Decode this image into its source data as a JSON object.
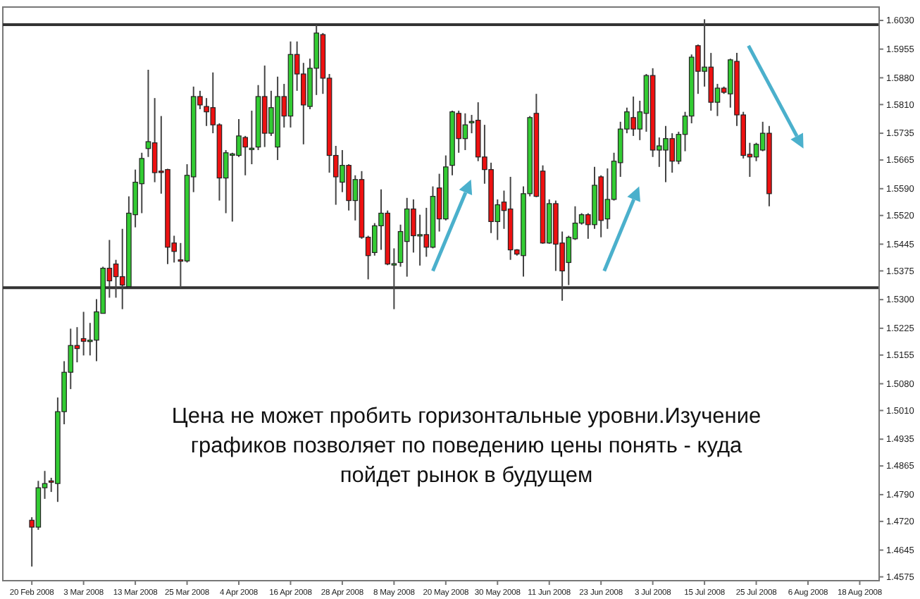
{
  "chart_data": {
    "type": "candlestick",
    "categories": [
      "20 Feb 2008",
      null,
      null,
      null,
      null,
      null,
      null,
      null,
      "3 Mar 2008",
      null,
      null,
      null,
      null,
      null,
      null,
      null,
      "13 Mar 2008",
      null,
      null,
      null,
      null,
      null,
      null,
      null,
      "25 Mar 2008",
      null,
      null,
      null,
      null,
      null,
      null,
      null,
      "4 Apr 2008",
      null,
      null,
      null,
      null,
      null,
      null,
      null,
      "16 Apr 2008",
      null,
      null,
      null,
      null,
      null,
      null,
      null,
      "28 Apr 2008",
      null,
      null,
      null,
      null,
      null,
      null,
      null,
      "8 May 2008",
      null,
      null,
      null,
      null,
      null,
      null,
      null,
      "20 May 2008",
      null,
      null,
      null,
      null,
      null,
      null,
      null,
      "30 May 2008",
      null,
      null,
      null,
      null,
      null,
      null,
      null,
      "11 Jun 2008",
      null,
      null,
      null,
      null,
      null,
      null,
      null,
      "23 Jun 2008",
      null,
      null,
      null,
      null,
      null,
      null,
      null,
      "3 Jul 2008",
      null,
      null,
      null,
      null,
      null,
      null,
      null,
      "15 Jul 2008",
      null,
      null,
      null,
      null,
      null,
      null,
      null,
      "25 Jul 2008",
      null,
      null,
      null,
      null,
      null,
      null,
      null,
      "6 Aug 2008",
      null,
      null,
      null,
      null,
      null,
      null,
      null,
      "18 Aug 2008",
      null,
      null
    ],
    "ohlc": [
      [
        1.4723,
        1.4731,
        1.4602,
        1.4705
      ],
      [
        1.4705,
        1.4826,
        1.4698,
        1.4808
      ],
      [
        1.4808,
        1.4852,
        1.4779,
        1.4819
      ],
      [
        1.4826,
        1.4834,
        1.4797,
        1.4823
      ],
      [
        1.4819,
        1.5044,
        1.4771,
        1.5007
      ],
      [
        1.5007,
        1.5139,
        1.4974,
        1.511
      ],
      [
        1.511,
        1.5224,
        1.5066,
        1.518
      ],
      [
        1.518,
        1.5228,
        1.5136,
        1.5172
      ],
      [
        1.5198,
        1.5268,
        1.5154,
        1.5191
      ],
      [
        1.5193,
        1.5239,
        1.5154,
        1.5194
      ],
      [
        1.5194,
        1.5301,
        1.5139,
        1.5268
      ],
      [
        1.5264,
        1.5386,
        1.5264,
        1.5382
      ],
      [
        1.5382,
        1.5456,
        1.5305,
        1.5349
      ],
      [
        1.5393,
        1.5404,
        1.5305,
        1.536
      ],
      [
        1.536,
        1.5485,
        1.5275,
        1.5338
      ],
      [
        1.5334,
        1.557,
        1.5331,
        1.5526
      ],
      [
        1.5522,
        1.564,
        1.5489,
        1.5607
      ],
      [
        1.5603,
        1.5684,
        1.5526,
        1.5669
      ],
      [
        1.5695,
        1.5901,
        1.5673,
        1.5713
      ],
      [
        1.571,
        1.5827,
        1.5607,
        1.5632
      ],
      [
        1.5636,
        1.578,
        1.5577,
        1.5634
      ],
      [
        1.564,
        1.5642,
        1.5393,
        1.5437
      ],
      [
        1.5448,
        1.5467,
        1.5397,
        1.5426
      ],
      [
        1.5404,
        1.5448,
        1.5331,
        1.5402
      ],
      [
        1.5401,
        1.5654,
        1.5397,
        1.5625
      ],
      [
        1.5621,
        1.5857,
        1.5581,
        1.5831
      ],
      [
        1.5831,
        1.5846,
        1.5798,
        1.5809
      ],
      [
        1.5805,
        1.5827,
        1.5754,
        1.5791
      ],
      [
        1.5802,
        1.5894,
        1.5735,
        1.5757
      ],
      [
        1.5757,
        1.5761,
        1.5559,
        1.5618
      ],
      [
        1.5618,
        1.5691,
        1.5526,
        1.5684
      ],
      [
        1.568,
        1.5684,
        1.5504,
        1.5681
      ],
      [
        1.5677,
        1.5772,
        1.5673,
        1.5728
      ],
      [
        1.5724,
        1.5728,
        1.5625,
        1.5699
      ],
      [
        1.5695,
        1.5794,
        1.5654,
        1.5696
      ],
      [
        1.5699,
        1.5861,
        1.5691,
        1.5831
      ],
      [
        1.5831,
        1.5912,
        1.5699,
        1.5735
      ],
      [
        1.5735,
        1.5846,
        1.5728,
        1.5802
      ],
      [
        1.5699,
        1.5883,
        1.5665,
        1.5831
      ],
      [
        1.5831,
        1.5864,
        1.575,
        1.578
      ],
      [
        1.578,
        1.5975,
        1.575,
        1.5941
      ],
      [
        1.5941,
        1.5975,
        1.5846,
        1.589
      ],
      [
        1.589,
        1.5919,
        1.5706,
        1.5809
      ],
      [
        1.5805,
        1.593,
        1.5798,
        1.5905
      ],
      [
        1.5905,
        1.6019,
        1.5835,
        1.5997
      ],
      [
        1.5993,
        1.5997,
        1.5838,
        1.5879
      ],
      [
        1.5879,
        1.589,
        1.5632,
        1.5677
      ],
      [
        1.5677,
        1.5702,
        1.5548,
        1.5621
      ],
      [
        1.5607,
        1.5691,
        1.5581,
        1.5651
      ],
      [
        1.5651,
        1.5654,
        1.5533,
        1.5559
      ],
      [
        1.5559,
        1.5625,
        1.5507,
        1.5614
      ],
      [
        1.5614,
        1.5636,
        1.5459,
        1.5463
      ],
      [
        1.5463,
        1.5467,
        1.5353,
        1.5415
      ],
      [
        1.5423,
        1.55,
        1.5415,
        1.5493
      ],
      [
        1.5493,
        1.5588,
        1.543,
        1.5526
      ],
      [
        1.5526,
        1.5533,
        1.539,
        1.5393
      ],
      [
        1.5393,
        1.5434,
        1.5275,
        1.5394
      ],
      [
        1.5397,
        1.5496,
        1.5386,
        1.5478
      ],
      [
        1.5452,
        1.5566,
        1.536,
        1.5537
      ],
      [
        1.5537,
        1.5562,
        1.5423,
        1.5467
      ],
      [
        1.5467,
        1.5522,
        1.5389,
        1.547
      ],
      [
        1.547,
        1.554,
        1.5412,
        1.5437
      ],
      [
        1.5437,
        1.5596,
        1.5434,
        1.557
      ],
      [
        1.5592,
        1.5629,
        1.5478,
        1.5511
      ],
      [
        1.5511,
        1.5677,
        1.5507,
        1.5647
      ],
      [
        1.5651,
        1.5794,
        1.5625,
        1.5791
      ],
      [
        1.5787,
        1.5794,
        1.5684,
        1.5721
      ],
      [
        1.5721,
        1.5787,
        1.5691,
        1.5757
      ],
      [
        1.5765,
        1.5783,
        1.5735,
        1.5766
      ],
      [
        1.5769,
        1.5816,
        1.5662,
        1.5673
      ],
      [
        1.5673,
        1.5757,
        1.5603,
        1.564
      ],
      [
        1.564,
        1.5658,
        1.5474,
        1.5504
      ],
      [
        1.5504,
        1.5562,
        1.5456,
        1.5548
      ],
      [
        1.5555,
        1.5585,
        1.5485,
        1.5533
      ],
      [
        1.5537,
        1.5621,
        1.5404,
        1.543
      ],
      [
        1.543,
        1.5432,
        1.5415,
        1.5419
      ],
      [
        1.5415,
        1.5596,
        1.536,
        1.5577
      ],
      [
        1.5577,
        1.578,
        1.557,
        1.5776
      ],
      [
        1.5787,
        1.5838,
        1.5568,
        1.557
      ],
      [
        1.5636,
        1.5651,
        1.5446,
        1.5448
      ],
      [
        1.5448,
        1.5562,
        1.5446,
        1.5551
      ],
      [
        1.5551,
        1.5559,
        1.5375,
        1.5445
      ],
      [
        1.5448,
        1.5478,
        1.5297,
        1.5375
      ],
      [
        1.5397,
        1.5467,
        1.5338,
        1.5463
      ],
      [
        1.5459,
        1.5544,
        1.5456,
        1.55
      ],
      [
        1.55,
        1.5526,
        1.5496,
        1.5522
      ],
      [
        1.5522,
        1.5526,
        1.5459,
        1.5496
      ],
      [
        1.5496,
        1.5647,
        1.5485,
        1.5599
      ],
      [
        1.5621,
        1.5625,
        1.5463,
        1.5507
      ],
      [
        1.5511,
        1.5643,
        1.5485,
        1.5562
      ],
      [
        1.5562,
        1.5684,
        1.5559,
        1.5662
      ],
      [
        1.5658,
        1.5765,
        1.5621,
        1.5746
      ],
      [
        1.5746,
        1.5802,
        1.5735,
        1.5791
      ],
      [
        1.5776,
        1.5831,
        1.5728,
        1.5746
      ],
      [
        1.5746,
        1.582,
        1.5717,
        1.5791
      ],
      [
        1.5787,
        1.589,
        1.5739,
        1.5886
      ],
      [
        1.5886,
        1.5905,
        1.5673,
        1.5691
      ],
      [
        1.5691,
        1.5724,
        1.5647,
        1.5702
      ],
      [
        1.5691,
        1.5754,
        1.5607,
        1.5721
      ],
      [
        1.5721,
        1.5735,
        1.5632,
        1.5662
      ],
      [
        1.5662,
        1.5739,
        1.5654,
        1.5732
      ],
      [
        1.5732,
        1.5791,
        1.5688,
        1.578
      ],
      [
        1.578,
        1.5941,
        1.5761,
        1.5934
      ],
      [
        1.5964,
        1.5967,
        1.5838,
        1.5897
      ],
      [
        1.5897,
        1.6033,
        1.5857,
        1.5908
      ],
      [
        1.5908,
        1.5945,
        1.5794,
        1.5816
      ],
      [
        1.5816,
        1.5864,
        1.578,
        1.5853
      ],
      [
        1.5853,
        1.5857,
        1.5838,
        1.5842
      ],
      [
        1.5838,
        1.593,
        1.5802,
        1.5927
      ],
      [
        1.5923,
        1.5945,
        1.5754,
        1.5783
      ],
      [
        1.5783,
        1.5791,
        1.5669,
        1.5677
      ],
      [
        1.568,
        1.571,
        1.5621,
        1.5673
      ],
      [
        1.5673,
        1.571,
        1.5662,
        1.5706
      ],
      [
        1.5691,
        1.5765,
        1.5688,
        1.5735
      ],
      [
        1.5735,
        1.5754,
        1.5544,
        1.5577
      ],
      null,
      null,
      null,
      null,
      null,
      null,
      null,
      null,
      null,
      null,
      null,
      null,
      null,
      null,
      null,
      null
    ],
    "colors": [
      "#ee1111",
      "#33cc33",
      "#33cc33",
      "#ee1111",
      "#33cc33",
      "#33cc33",
      "#33cc33",
      "#ee1111",
      "#ee1111",
      "#33cc33",
      "#33cc33",
      "#33cc33",
      "#ee1111",
      "#ee1111",
      "#ee1111",
      "#33cc33",
      "#33cc33",
      "#33cc33",
      "#33cc33",
      "#ee1111",
      "#ee1111",
      "#ee1111",
      "#ee1111",
      "#ee1111",
      "#33cc33",
      "#33cc33",
      "#ee1111",
      "#ee1111",
      "#ee1111",
      "#ee1111",
      "#33cc33",
      "#33cc33",
      "#33cc33",
      "#ee1111",
      "#33cc33",
      "#33cc33",
      "#ee1111",
      "#33cc33",
      "#33cc33",
      "#ee1111",
      "#33cc33",
      "#ee1111",
      "#ee1111",
      "#33cc33",
      "#33cc33",
      "#ee1111",
      "#ee1111",
      "#ee1111",
      "#33cc33",
      "#ee1111",
      "#33cc33",
      "#ee1111",
      "#ee1111",
      "#33cc33",
      "#33cc33",
      "#ee1111",
      "#33cc33",
      "#33cc33",
      "#33cc33",
      "#ee1111",
      "#33cc33",
      "#ee1111",
      "#33cc33",
      "#ee1111",
      "#33cc33",
      "#33cc33",
      "#ee1111",
      "#33cc33",
      "#33cc33",
      "#ee1111",
      "#ee1111",
      "#ee1111",
      "#33cc33",
      "#ee1111",
      "#ee1111",
      "#ee1111",
      "#33cc33",
      "#33cc33",
      "#ee1111",
      "#ee1111",
      "#33cc33",
      "#ee1111",
      "#ee1111",
      "#33cc33",
      "#33cc33",
      "#33cc33",
      "#ee1111",
      "#33cc33",
      "#ee1111",
      "#33cc33",
      "#33cc33",
      "#33cc33",
      "#33cc33",
      "#ee1111",
      "#33cc33",
      "#33cc33",
      "#ee1111",
      "#33cc33",
      "#33cc33",
      "#ee1111",
      "#33cc33",
      "#33cc33",
      "#33cc33",
      "#ee1111",
      "#33cc33",
      "#ee1111",
      "#33cc33",
      "#ee1111",
      "#33cc33",
      "#ee1111",
      "#ee1111",
      "#ee1111",
      "#33cc33",
      "#33cc33",
      "#ee1111",
      null,
      null,
      null,
      null,
      null,
      null,
      null,
      null,
      null,
      null,
      null,
      null,
      null,
      null,
      null,
      null
    ],
    "ylim": [
      1.4565,
      1.6065
    ],
    "yticks": [
      {
        "value": 1.603,
        "label": "1.6030"
      },
      {
        "value": 1.5955,
        "label": "1.5955"
      },
      {
        "value": 1.588,
        "label": "1.5880"
      },
      {
        "value": 1.581,
        "label": "1.5810"
      },
      {
        "value": 1.5735,
        "label": "1.5735"
      },
      {
        "value": 1.5665,
        "label": "1.5665"
      },
      {
        "value": 1.559,
        "label": "1.5590"
      },
      {
        "value": 1.552,
        "label": "1.5520"
      },
      {
        "value": 1.5445,
        "label": "1.5445"
      },
      {
        "value": 1.5375,
        "label": "1.5375"
      },
      {
        "value": 1.53,
        "label": "1.5300"
      },
      {
        "value": 1.5225,
        "label": "1.5225"
      },
      {
        "value": 1.5155,
        "label": "1.5155"
      },
      {
        "value": 1.508,
        "label": "1.5080"
      },
      {
        "value": 1.501,
        "label": "1.5010"
      },
      {
        "value": 1.4935,
        "label": "1.4935"
      },
      {
        "value": 1.4865,
        "label": "1.4865"
      },
      {
        "value": 1.479,
        "label": "1.4790"
      },
      {
        "value": 1.472,
        "label": "1.4720"
      },
      {
        "value": 1.4645,
        "label": "1.4645"
      },
      {
        "value": 1.4575,
        "label": "1.4575"
      }
    ],
    "ref_lines": [
      {
        "axis": "y",
        "value": 1.6019,
        "color": "#333333"
      },
      {
        "axis": "y",
        "value": 1.5331,
        "color": "#333333"
      }
    ],
    "annotations": [
      "Цена не может пробить горизонтальные уровни.Изучение графиков позволяет по поведению цены понять - куда пойдет рынок в будущем"
    ],
    "grid": false
  }
}
